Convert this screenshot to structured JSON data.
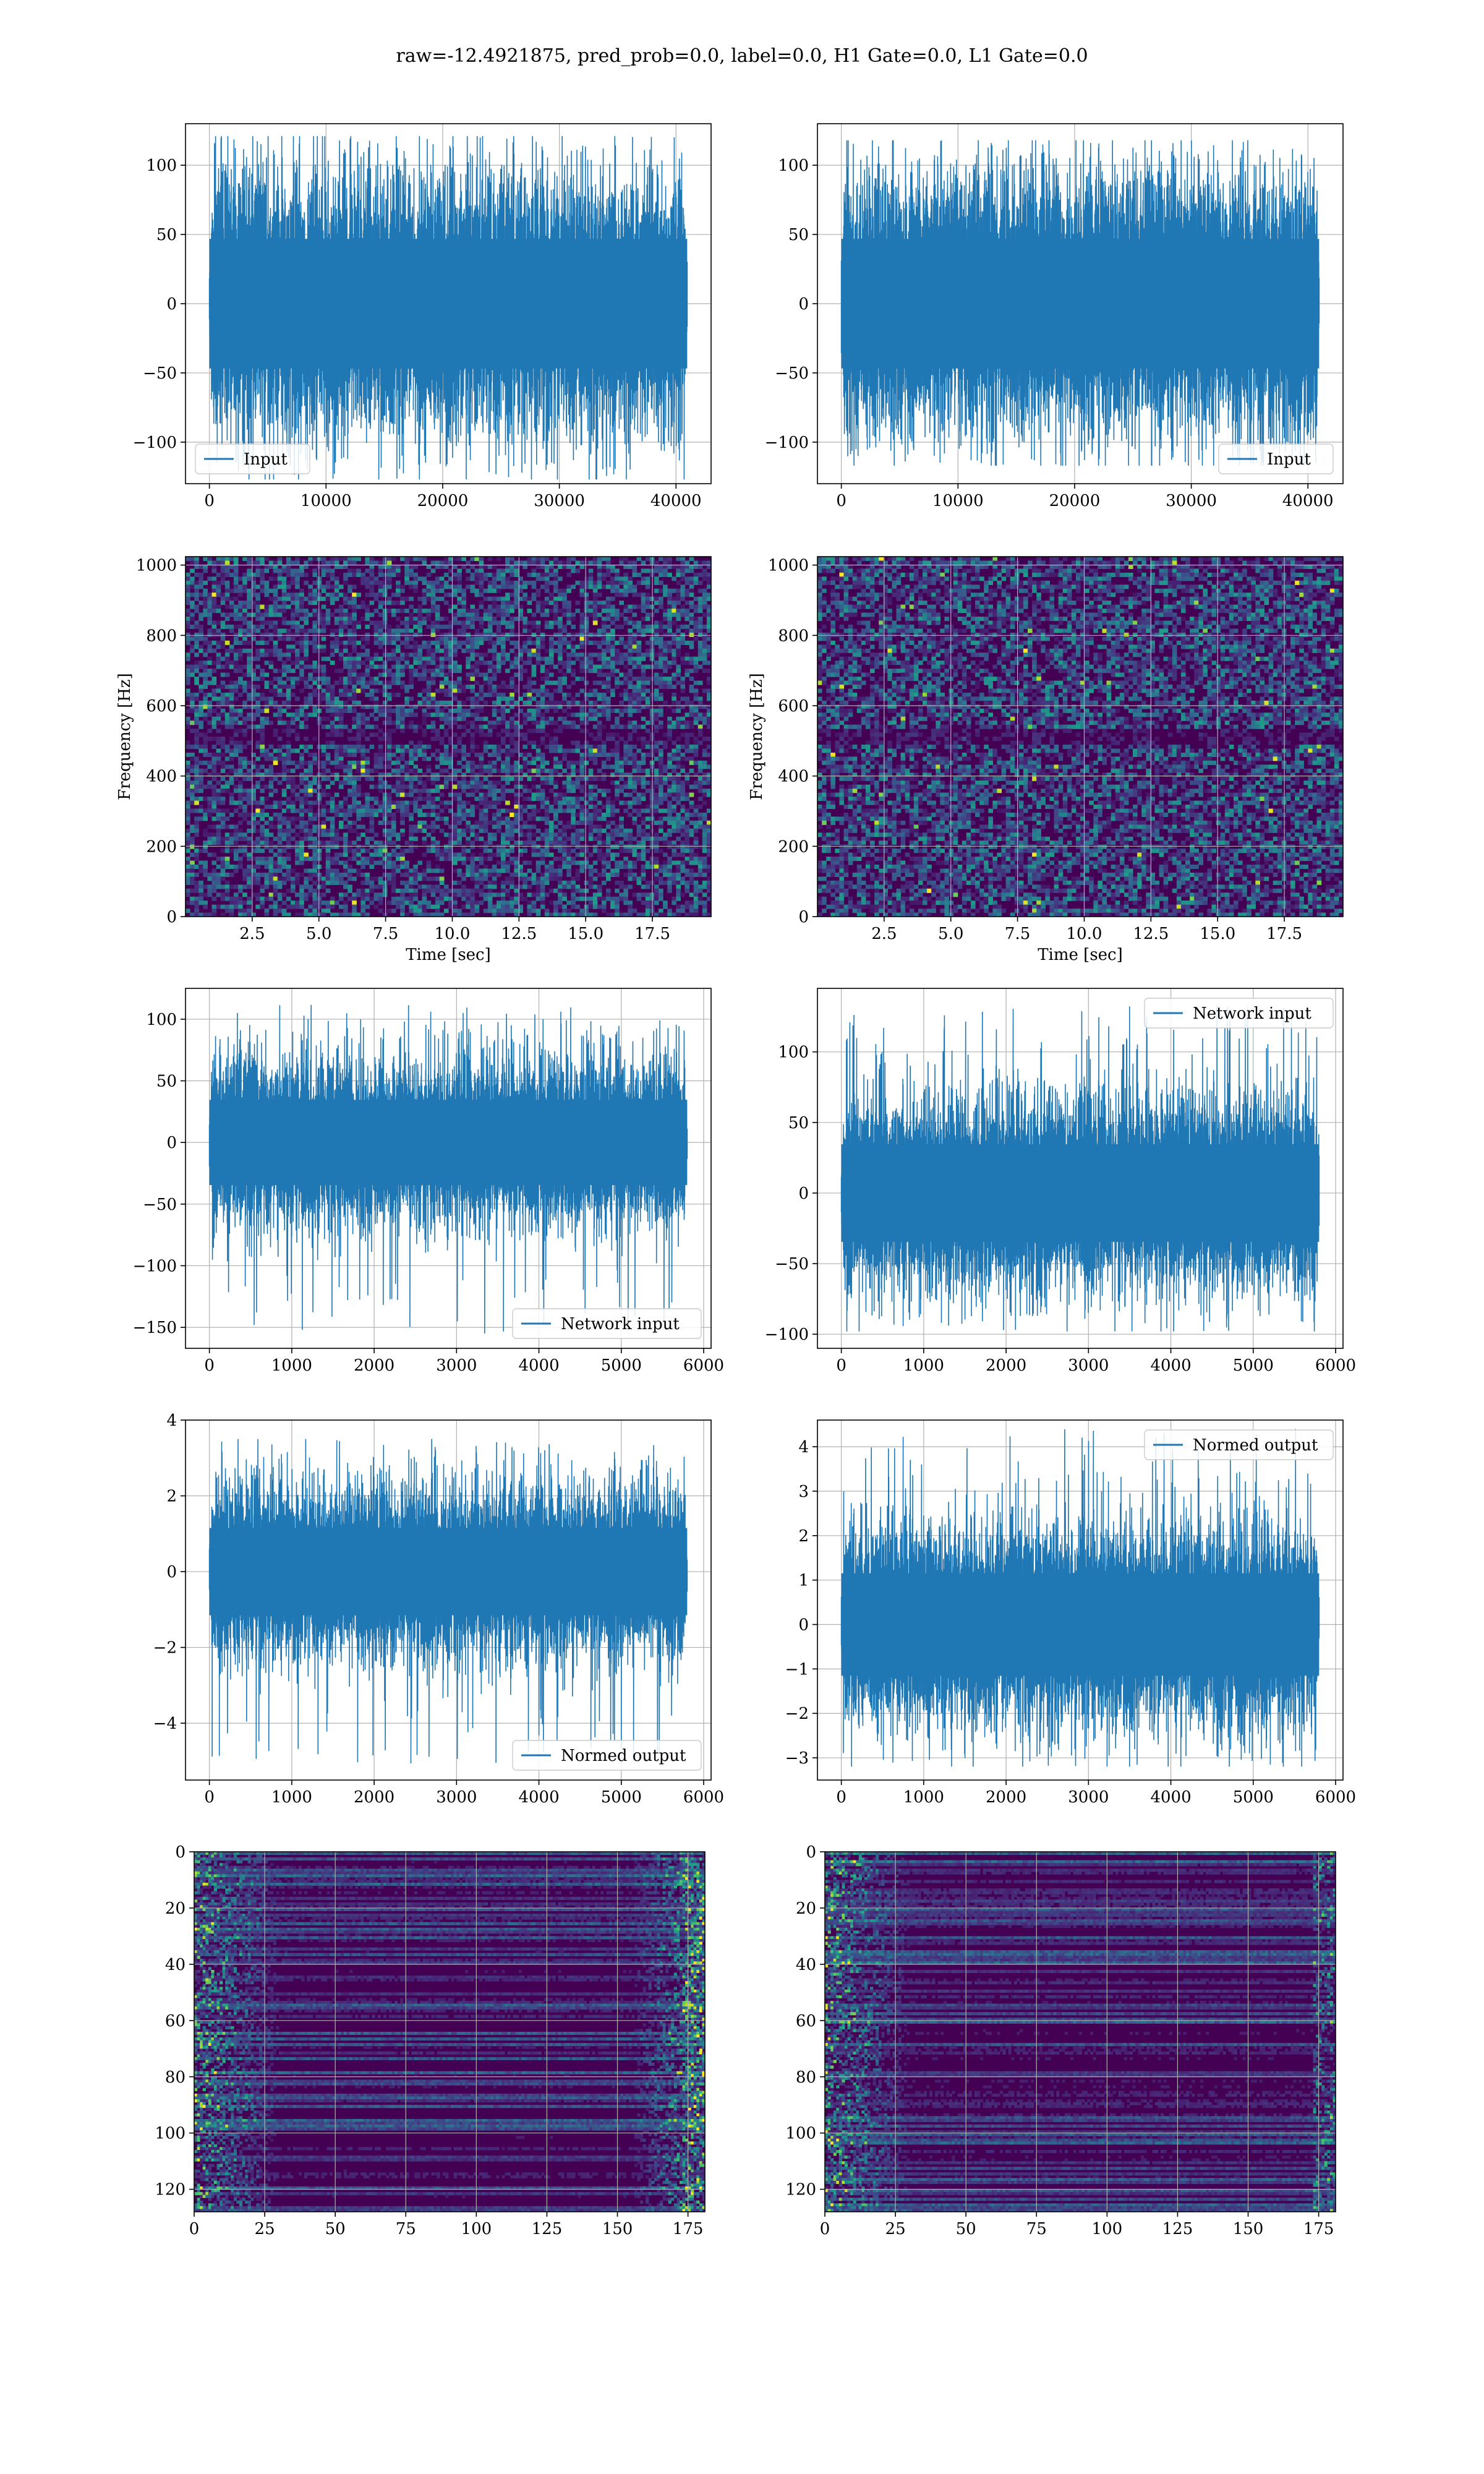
{
  "figure_title": "raw=-12.4921875, pred_prob=0.0, label=0.0, H1 Gate=0.0, L1 Gate=0.0",
  "colors": {
    "series": "#1f77b4",
    "viridis_low": "#440154",
    "viridis_mid": "#21908d",
    "viridis_high": "#fde725",
    "grid": "#b0b0b0",
    "frame": "#000000"
  },
  "chart_data": [
    {
      "id": "input-left",
      "type": "line",
      "xlim": [
        -2048,
        43008
      ],
      "ylim": [
        -130,
        130
      ],
      "xticks": [
        "0",
        "10000",
        "20000",
        "30000",
        "40000"
      ],
      "xtick_values": [
        0,
        10000,
        20000,
        30000,
        40000
      ],
      "yticks": [
        "−100",
        "−50",
        "0",
        "50",
        "100"
      ],
      "ytick_values": [
        -100,
        -50,
        0,
        50,
        100
      ],
      "legend": {
        "label": "Input",
        "loc": "lower left"
      },
      "signal": {
        "x_start": 0,
        "x_end": 40960,
        "envelope_max": 121,
        "envelope_min": -127,
        "typical_band": 65
      },
      "grid": true
    },
    {
      "id": "input-right",
      "type": "line",
      "xlim": [
        -2048,
        43008
      ],
      "ylim": [
        -130,
        130
      ],
      "xticks": [
        "0",
        "10000",
        "20000",
        "30000",
        "40000"
      ],
      "xtick_values": [
        0,
        10000,
        20000,
        30000,
        40000
      ],
      "yticks": [
        "−100",
        "−50",
        "0",
        "50",
        "100"
      ],
      "ytick_values": [
        -100,
        -50,
        0,
        50,
        100
      ],
      "legend": {
        "label": "Input",
        "loc": "lower right"
      },
      "signal": {
        "x_start": 0,
        "x_end": 40960,
        "envelope_max": 118,
        "envelope_min": -117,
        "typical_band": 65
      },
      "grid": true
    },
    {
      "id": "spectrogram-left",
      "type": "heatmap",
      "xlabel": "Time [sec]",
      "ylabel": "Frequency [Hz]",
      "xlim": [
        0,
        19.7
      ],
      "ylim": [
        0,
        1024
      ],
      "xticks": [
        "2.5",
        "5.0",
        "7.5",
        "10.0",
        "12.5",
        "15.0",
        "17.5"
      ],
      "xtick_values": [
        2.5,
        5,
        7.5,
        10,
        12.5,
        15,
        17.5
      ],
      "yticks": [
        "0",
        "200",
        "400",
        "600",
        "800",
        "1000"
      ],
      "ytick_values": [
        0,
        200,
        400,
        600,
        800,
        1000
      ],
      "colormap": "viridis",
      "grid": true
    },
    {
      "id": "spectrogram-right",
      "type": "heatmap",
      "xlabel": "Time [sec]",
      "ylabel": "Frequency [Hz]",
      "xlim": [
        0,
        19.7
      ],
      "ylim": [
        0,
        1024
      ],
      "xticks": [
        "2.5",
        "5.0",
        "7.5",
        "10.0",
        "12.5",
        "15.0",
        "17.5"
      ],
      "xtick_values": [
        2.5,
        5,
        7.5,
        10,
        12.5,
        15,
        17.5
      ],
      "yticks": [
        "0",
        "200",
        "400",
        "600",
        "800",
        "1000"
      ],
      "ytick_values": [
        0,
        200,
        400,
        600,
        800,
        1000
      ],
      "colormap": "viridis",
      "grid": true
    },
    {
      "id": "network-left",
      "type": "line",
      "xlim": [
        -290,
        6090
      ],
      "ylim": [
        -167,
        125
      ],
      "xticks": [
        "0",
        "1000",
        "2000",
        "3000",
        "4000",
        "5000",
        "6000"
      ],
      "xtick_values": [
        0,
        1000,
        2000,
        3000,
        4000,
        5000,
        6000
      ],
      "yticks": [
        "−150",
        "−100",
        "−50",
        "0",
        "50",
        "100"
      ],
      "ytick_values": [
        -150,
        -100,
        -50,
        0,
        50,
        100
      ],
      "legend": {
        "label": "Network input",
        "loc": "lower right"
      },
      "signal": {
        "x_start": 0,
        "x_end": 5800,
        "envelope_max": 112,
        "envelope_min": -155,
        "typical_band": 48
      },
      "grid": true
    },
    {
      "id": "network-right",
      "type": "line",
      "xlim": [
        -290,
        6090
      ],
      "ylim": [
        -110,
        145
      ],
      "xticks": [
        "0",
        "1000",
        "2000",
        "3000",
        "4000",
        "5000",
        "6000"
      ],
      "xtick_values": [
        0,
        1000,
        2000,
        3000,
        4000,
        5000,
        6000
      ],
      "yticks": [
        "−100",
        "−50",
        "0",
        "50",
        "100"
      ],
      "ytick_values": [
        -100,
        -50,
        0,
        50,
        100
      ],
      "legend": {
        "label": "Network input",
        "loc": "upper right"
      },
      "signal": {
        "x_start": 0,
        "x_end": 5800,
        "envelope_max": 135,
        "envelope_min": -98,
        "typical_band": 48
      },
      "grid": true
    },
    {
      "id": "normed-left",
      "type": "line",
      "xlim": [
        -290,
        6090
      ],
      "ylim": [
        -5.5,
        4.0
      ],
      "xticks": [
        "0",
        "1000",
        "2000",
        "3000",
        "4000",
        "5000",
        "6000"
      ],
      "xtick_values": [
        0,
        1000,
        2000,
        3000,
        4000,
        5000,
        6000
      ],
      "yticks": [
        "−4",
        "−2",
        "0",
        "2",
        "4"
      ],
      "ytick_values": [
        -4,
        -2,
        0,
        2,
        4
      ],
      "legend": {
        "label": "Normed output",
        "loc": "lower right"
      },
      "signal": {
        "x_start": 0,
        "x_end": 5800,
        "envelope_max": 3.5,
        "envelope_min": -5.1,
        "typical_band": 1.6
      },
      "grid": true
    },
    {
      "id": "normed-right",
      "type": "line",
      "xlim": [
        -290,
        6090
      ],
      "ylim": [
        -3.5,
        4.6
      ],
      "xticks": [
        "0",
        "1000",
        "2000",
        "3000",
        "4000",
        "5000",
        "6000"
      ],
      "xtick_values": [
        0,
        1000,
        2000,
        3000,
        4000,
        5000,
        6000
      ],
      "yticks": [
        "−3",
        "−2",
        "−1",
        "0",
        "1",
        "2",
        "3",
        "4"
      ],
      "ytick_values": [
        -3,
        -2,
        -1,
        0,
        1,
        2,
        3,
        4
      ],
      "legend": {
        "label": "Normed output",
        "loc": "upper right"
      },
      "signal": {
        "x_start": 0,
        "x_end": 5800,
        "envelope_max": 4.4,
        "envelope_min": -3.2,
        "typical_band": 1.6
      },
      "grid": true
    },
    {
      "id": "feature-left",
      "type": "heatmap",
      "xlim": [
        0,
        181
      ],
      "ylim": [
        128,
        0
      ],
      "xticks": [
        "0",
        "25",
        "50",
        "75",
        "100",
        "125",
        "150",
        "175"
      ],
      "xtick_values": [
        0,
        25,
        50,
        75,
        100,
        125,
        150,
        175
      ],
      "yticks": [
        "0",
        "20",
        "40",
        "60",
        "80",
        "100",
        "120"
      ],
      "ytick_values": [
        0,
        20,
        40,
        60,
        80,
        100,
        120
      ],
      "colormap": "viridis",
      "grid": true
    },
    {
      "id": "feature-right",
      "type": "heatmap",
      "xlim": [
        0,
        181
      ],
      "ylim": [
        128,
        0
      ],
      "xticks": [
        "0",
        "25",
        "50",
        "75",
        "100",
        "125",
        "150",
        "175"
      ],
      "xtick_values": [
        0,
        25,
        50,
        75,
        100,
        125,
        150,
        175
      ],
      "yticks": [
        "0",
        "20",
        "40",
        "60",
        "80",
        "100",
        "120"
      ],
      "ytick_values": [
        0,
        20,
        40,
        60,
        80,
        100,
        120
      ],
      "colormap": "viridis",
      "grid": true
    }
  ]
}
